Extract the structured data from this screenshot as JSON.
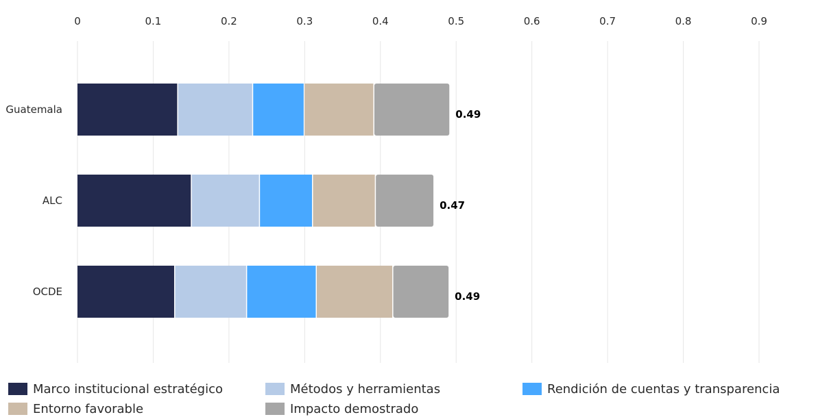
{
  "chart_data": {
    "type": "bar",
    "orientation": "horizontal",
    "stacked": true,
    "categories": [
      "Guatemala",
      "ALC",
      "OCDE"
    ],
    "series": [
      {
        "name": "Marco institucional estratégico",
        "color": "#232a4e",
        "values": [
          0.133,
          0.151,
          0.129
        ]
      },
      {
        "name": "Métodos y herramientas",
        "color": "#b6cbe7",
        "values": [
          0.099,
          0.09,
          0.095
        ]
      },
      {
        "name": "Rendición de cuentas y transparencia",
        "color": "#48a8ff",
        "values": [
          0.068,
          0.07,
          0.092
        ]
      },
      {
        "name": "Entorno favorable",
        "color": "#ccbba7",
        "values": [
          0.092,
          0.083,
          0.101
        ]
      },
      {
        "name": "Impacto demostrado",
        "color": "#a6a6a6",
        "values": [
          0.099,
          0.076,
          0.073
        ]
      }
    ],
    "totals": [
      "0.49",
      "0.47",
      "0.49"
    ],
    "xlim": [
      0,
      0.9
    ],
    "xticks": [
      "0",
      "0.1",
      "0.2",
      "0.3",
      "0.4",
      "0.5",
      "0.6",
      "0.7",
      "0.8",
      "0.9"
    ],
    "grid": true,
    "legend_position": "bottom"
  }
}
